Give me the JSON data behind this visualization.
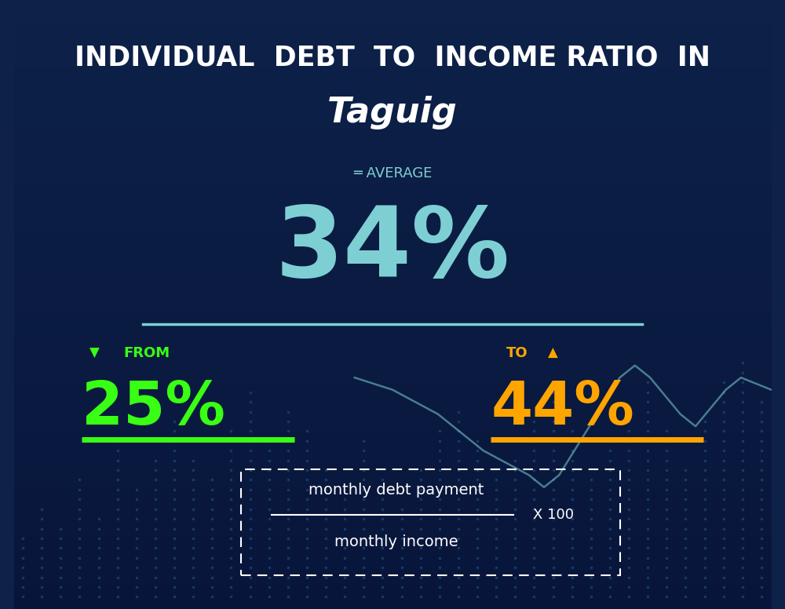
{
  "title_line1": "INDIVIDUAL  DEBT  TO  INCOME RATIO  IN",
  "title_line2": "Taguig",
  "average_label": "═ AVERAGE",
  "average_value": "34%",
  "from_label": "FROM",
  "from_value": "25%",
  "to_label": "TO",
  "to_value": "44%",
  "formula_numerator": "monthly debt payment",
  "formula_denominator": "monthly income",
  "formula_multiplier": "X 100",
  "bg_color_top": "#0d2149",
  "bg_color_bottom": "#08153a",
  "title_color": "#ffffff",
  "average_label_color": "#7ecfd4",
  "average_value_color": "#7ecfd4",
  "from_color": "#39ff14",
  "to_color": "#ffa500",
  "formula_color": "#ffffff",
  "separator_color": "#7ecfd4",
  "from_underline_color": "#39ff14",
  "to_underline_color": "#ffa500",
  "line_color": "#7ecfd4",
  "dot_color": "#1e5080"
}
